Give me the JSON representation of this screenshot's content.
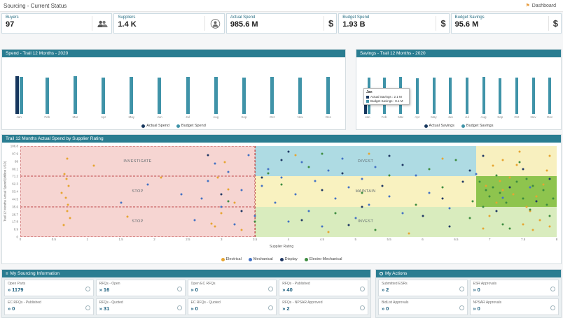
{
  "header": {
    "title": "Sourcing - Current Status",
    "dashboard_label": "Dashboard"
  },
  "kpis": [
    {
      "label": "Buyers",
      "value": "97",
      "icon": "buyers"
    },
    {
      "label": "Suppliers",
      "value": "1.4 K",
      "icon": "supplier"
    },
    {
      "label": "Actual Spend",
      "value": "985.6 M",
      "icon": "dollar"
    },
    {
      "label": "Budget Spend",
      "value": "1.93 B",
      "icon": "dollar"
    },
    {
      "label": "Budget Savings",
      "value": "95.6 M",
      "icon": "dollar"
    }
  ],
  "savings_tooltip": {
    "month": "Jan",
    "actual": "Actual Savings : 2.1 M",
    "budget": "Budget Savings : 8.1 M"
  },
  "sourcing_info": {
    "title": "My Sourcing Information",
    "tiles": [
      {
        "label": "Open Parts",
        "value": "1179"
      },
      {
        "label": "RFQs - Open",
        "value": "16"
      },
      {
        "label": "Open EC RFQs",
        "value": "0"
      },
      {
        "label": "RFQs - Published",
        "value": "40"
      },
      {
        "label": "EC RFQs - Published",
        "value": "0"
      },
      {
        "label": "RFQs - Quoted",
        "value": "31"
      },
      {
        "label": "EC RFQs - Quoted",
        "value": "0"
      },
      {
        "label": "RFQs - NPSAR Approved",
        "value": "2"
      }
    ]
  },
  "actions": {
    "title": "My Actions",
    "tiles": [
      {
        "label": "Submitted ESRs",
        "value": "2"
      },
      {
        "label": "ESR Approvals",
        "value": "0"
      },
      {
        "label": "BidList Approvals",
        "value": "0"
      },
      {
        "label": "NPSAR Approvals",
        "value": "0"
      }
    ]
  },
  "chart_data": [
    {
      "id": "spend",
      "type": "bar",
      "title": "Spend - Trail 12 Months - 2020",
      "categories": [
        "Jan",
        "Feb",
        "Mar",
        "Apr",
        "May",
        "Jun",
        "Jul",
        "Aug",
        "Sep",
        "Oct",
        "Nov",
        "Dec"
      ],
      "series": [
        {
          "name": "Actual Spend",
          "color": "#17375e",
          "values": [
            84,
            null,
            null,
            null,
            null,
            null,
            null,
            null,
            null,
            null,
            null,
            null
          ]
        },
        {
          "name": "Budget Spend",
          "color": "#3f93a8",
          "values": [
            83,
            81,
            84,
            80,
            82,
            81,
            83,
            82,
            80,
            83,
            81,
            82
          ]
        }
      ],
      "ylim": [
        0,
        90
      ],
      "unit": "Million USD",
      "legend_position": "bottom"
    },
    {
      "id": "savings",
      "type": "bar",
      "title": "Savings - Trail 12 Months - 2020",
      "categories": [
        "Jan",
        "Feb",
        "Mar",
        "Apr",
        "May",
        "Jun",
        "Jul",
        "Aug",
        "Sep",
        "Oct",
        "Nov",
        "Dec"
      ],
      "series": [
        {
          "name": "Actual Savings",
          "color": "#17375e",
          "values": [
            2.1,
            null,
            null,
            null,
            null,
            null,
            null,
            null,
            null,
            null,
            null,
            null
          ]
        },
        {
          "name": "Budget Savings",
          "color": "#3f93a8",
          "values": [
            8.1,
            8.0,
            8.2,
            7.9,
            8.1,
            8.0,
            8.1,
            8.2,
            7.9,
            8.0,
            8.1,
            8.0
          ]
        }
      ],
      "ylim": [
        0,
        9
      ],
      "unit": "Million USD",
      "legend_position": "bottom"
    },
    {
      "id": "rating_scatter",
      "type": "scatter",
      "title": "Trail 12 Months Actual Spend by Supplier Rating",
      "xlabel": "Supplier Rating",
      "ylabel": "Trail 12 Months Actual Spend (Million USD)",
      "xlim": [
        0,
        8
      ],
      "ylim": [
        0,
        106.8
      ],
      "x_ticks": [
        0,
        0.5,
        1,
        1.5,
        2,
        2.5,
        3,
        3.5,
        4,
        4.5,
        5,
        5.5,
        6,
        6.5,
        7,
        7.5,
        8
      ],
      "y_ticks": [
        0,
        8.9,
        17.8,
        26.7,
        35.6,
        44.5,
        53.4,
        62.3,
        71.2,
        80.1,
        89,
        97.9,
        106.8
      ],
      "divider_x": 3.5,
      "quadrants": [
        {
          "label": "INVESTIGATE",
          "x0": 0,
          "x1": 3.5,
          "y0": 71.2,
          "y1": 106.8,
          "color": "#f6d5d2",
          "dashed": true
        },
        {
          "label": "DIVEST",
          "x0": 3.5,
          "x1": 6.8,
          "y0": 71.2,
          "y1": 106.8,
          "color": "#aedbe3",
          "dashed": false
        },
        {
          "label": "",
          "x0": 6.8,
          "x1": 8,
          "y0": 71.2,
          "y1": 106.8,
          "color": "#f8f0bf",
          "dashed": false
        },
        {
          "label": "STOP",
          "x0": 0,
          "x1": 3.5,
          "y0": 35.6,
          "y1": 71.2,
          "color": "#f6d5d2",
          "dashed": true
        },
        {
          "label": "MAINTAIN",
          "x0": 3.5,
          "x1": 6.8,
          "y0": 35.6,
          "y1": 71.2,
          "color": "#f9f2c0",
          "dashed": false
        },
        {
          "label": "",
          "x0": 6.8,
          "x1": 8,
          "y0": 35.6,
          "y1": 71.2,
          "color": "#8ec44e",
          "dashed": false
        },
        {
          "label": "STOP",
          "x0": 0,
          "x1": 3.5,
          "y0": 0,
          "y1": 35.6,
          "color": "#f6d5d2",
          "dashed": true
        },
        {
          "label": "INVEST",
          "x0": 3.5,
          "x1": 6.8,
          "y0": 0,
          "y1": 35.6,
          "color": "#d9ecbe",
          "dashed": false
        },
        {
          "label": "",
          "x0": 6.8,
          "x1": 8,
          "y0": 0,
          "y1": 35.6,
          "color": "#d9ecbe",
          "dashed": false
        }
      ],
      "series": [
        {
          "name": "Electrical",
          "color": "#e6a532",
          "points": [
            [
              0.65,
              14
            ],
            [
              0.7,
              30
            ],
            [
              0.68,
              46
            ],
            [
              0.72,
              60
            ],
            [
              0.66,
              74
            ],
            [
              0.7,
              92
            ],
            [
              0.74,
              22
            ],
            [
              0.62,
              52
            ],
            [
              0.69,
              68
            ],
            [
              0.71,
              38
            ],
            [
              1.1,
              84
            ],
            [
              1.6,
              24
            ],
            [
              2.1,
              70
            ],
            [
              2.85,
              16
            ],
            [
              2.9,
              12
            ],
            [
              3.0,
              28
            ],
            [
              3.1,
              56
            ],
            [
              2.95,
              70
            ],
            [
              3.05,
              88
            ],
            [
              3.2,
              40
            ],
            [
              3.3,
              8
            ],
            [
              4.1,
              96
            ],
            [
              4.6,
              6
            ],
            [
              5.2,
              98
            ],
            [
              5.8,
              4
            ],
            [
              6.3,
              92
            ],
            [
              6.9,
              10
            ],
            [
              7.0,
              25
            ],
            [
              7.1,
              40
            ],
            [
              7.2,
              55
            ],
            [
              7.3,
              70
            ],
            [
              7.4,
              85
            ],
            [
              7.5,
              15
            ],
            [
              7.6,
              30
            ],
            [
              7.7,
              48
            ],
            [
              7.8,
              62
            ],
            [
              7.85,
              78
            ],
            [
              7.9,
              95
            ],
            [
              7.2,
              90
            ],
            [
              7.45,
              100
            ],
            [
              6.95,
              60
            ],
            [
              7.65,
              8
            ],
            [
              7.05,
              84
            ],
            [
              7.55,
              35
            ],
            [
              7.75,
              20
            ],
            [
              7.35,
              50
            ],
            [
              7.9,
              12
            ],
            [
              7.15,
              66
            ]
          ]
        },
        {
          "name": "Mechanical",
          "color": "#4472c4",
          "points": [
            [
              1.5,
              40
            ],
            [
              1.9,
              62
            ],
            [
              2.4,
              50
            ],
            [
              2.6,
              20
            ],
            [
              2.7,
              45
            ],
            [
              2.8,
              66
            ],
            [
              2.9,
              86
            ],
            [
              3.0,
              35
            ],
            [
              3.1,
              76
            ],
            [
              3.2,
              15
            ],
            [
              3.3,
              55
            ],
            [
              3.4,
              96
            ],
            [
              3.5,
              25
            ],
            [
              3.6,
              60
            ],
            [
              3.7,
              80
            ],
            [
              3.8,
              40
            ],
            [
              3.9,
              70
            ],
            [
              4.0,
              18
            ],
            [
              4.1,
              50
            ],
            [
              4.2,
              88
            ],
            [
              4.3,
              30
            ],
            [
              4.4,
              66
            ],
            [
              4.5,
              12
            ],
            [
              4.6,
              78
            ],
            [
              4.7,
              45
            ],
            [
              4.8,
              92
            ],
            [
              4.9,
              58
            ],
            [
              5.0,
              22
            ],
            [
              5.1,
              68
            ],
            [
              5.2,
              38
            ],
            [
              5.3,
              82
            ],
            [
              5.5,
              48
            ],
            [
              5.7,
              28
            ],
            [
              5.9,
              72
            ],
            [
              6.1,
              52
            ],
            [
              6.4,
              34
            ],
            [
              6.8,
              74
            ],
            [
              7.2,
              46
            ],
            [
              7.6,
              58
            ]
          ]
        },
        {
          "name": "Display",
          "color": "#203864",
          "points": [
            [
              2.8,
              96
            ],
            [
              3.0,
              50
            ],
            [
              3.3,
              30
            ],
            [
              3.6,
              70
            ],
            [
              3.9,
              90
            ],
            [
              4.0,
              100
            ],
            [
              4.2,
              20
            ],
            [
              4.5,
              55
            ],
            [
              4.8,
              75
            ],
            [
              4.9,
              14
            ],
            [
              5.1,
              35
            ],
            [
              5.4,
              60
            ],
            [
              5.5,
              95
            ],
            [
              5.7,
              85
            ],
            [
              6.0,
              25
            ],
            [
              6.3,
              45
            ],
            [
              6.4,
              12
            ],
            [
              6.6,
              65
            ],
            [
              6.7,
              78
            ],
            [
              6.9,
              95
            ],
            [
              7.1,
              30
            ],
            [
              7.3,
              58
            ],
            [
              7.5,
              80
            ],
            [
              7.7,
              42
            ],
            [
              7.9,
              68
            ]
          ]
        },
        {
          "name": "Electro-Mechanical",
          "color": "#3d8c40",
          "points": [
            [
              3.1,
              42
            ],
            [
              3.5,
              18
            ],
            [
              3.7,
              75
            ],
            [
              3.9,
              62
            ],
            [
              4.3,
              82
            ],
            [
              4.5,
              98
            ],
            [
              4.7,
              28
            ],
            [
              5.1,
              52
            ],
            [
              5.3,
              8
            ],
            [
              5.5,
              72
            ],
            [
              5.9,
              38
            ],
            [
              6.1,
              80
            ],
            [
              6.3,
              58
            ],
            [
              6.5,
              90
            ],
            [
              6.7,
              22
            ],
            [
              6.75,
              42
            ],
            [
              6.85,
              65
            ],
            [
              6.9,
              35
            ],
            [
              6.95,
              55
            ],
            [
              7.0,
              48
            ],
            [
              7.05,
              58
            ],
            [
              7.1,
              72
            ],
            [
              7.15,
              52
            ],
            [
              7.2,
              15
            ],
            [
              7.25,
              40
            ],
            [
              7.3,
              10
            ],
            [
              7.4,
              65
            ],
            [
              7.45,
              88
            ],
            [
              7.5,
              45
            ],
            [
              7.55,
              68
            ],
            [
              7.6,
              32
            ],
            [
              7.65,
              60
            ],
            [
              7.8,
              55
            ],
            [
              7.85,
              38
            ],
            [
              7.9,
              25
            ],
            [
              7.95,
              45
            ]
          ]
        }
      ],
      "legend_position": "bottom"
    }
  ]
}
